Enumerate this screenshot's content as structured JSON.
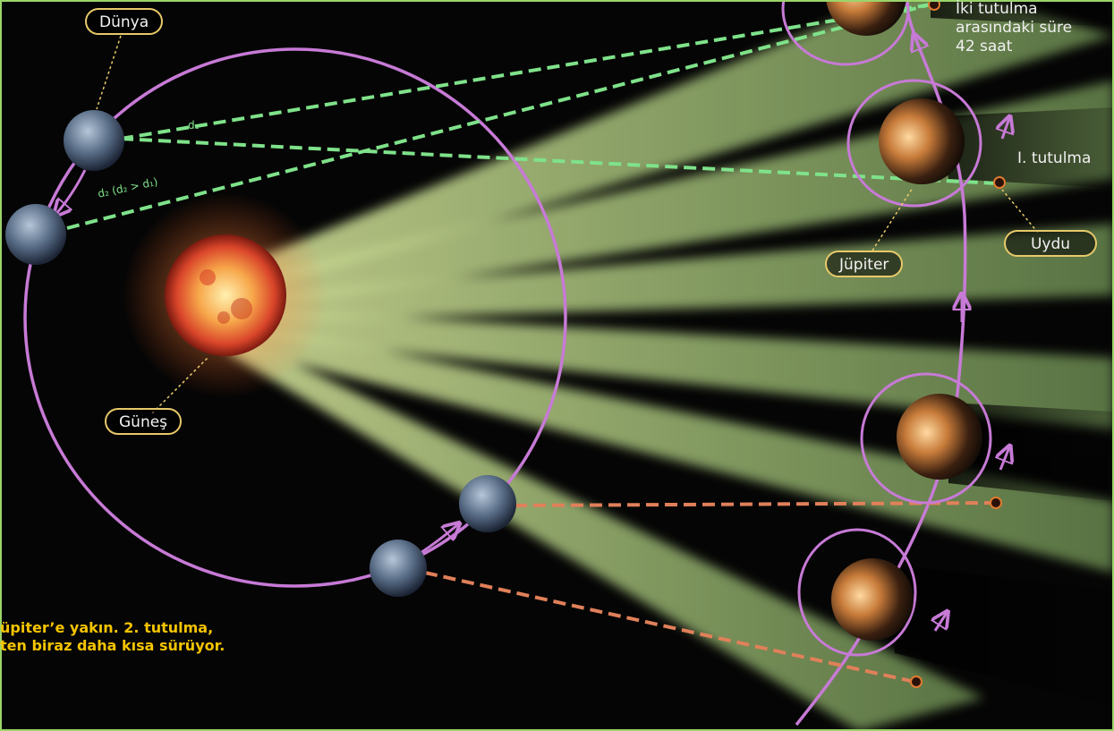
{
  "labels": {
    "dunya": "Dünya",
    "gunes": "Güneş",
    "jupiter": "Jüpiter",
    "uydu": "Uydu",
    "first_eclipse": "I. tutulma",
    "interval_line1": "İki tutulma",
    "interval_line2": "arasındaki süre",
    "interval_line3": "42 saat",
    "d1": "d₁",
    "d2": "d₂ (d₂ > d₁)"
  },
  "caption": {
    "line1": "üpiter’e yakın. 2. tutulma,",
    "line2": "ten biraz daha kısa sürüyor."
  },
  "colors": {
    "orbit": "#c77ad6",
    "pill_border": "#e8c96a",
    "green_ray": "#b8f08a",
    "dashed_green": "#7fe28a",
    "dashed_orange": "#e0805a",
    "caption_text": "#f5c400",
    "frame": "#9bd46a"
  }
}
